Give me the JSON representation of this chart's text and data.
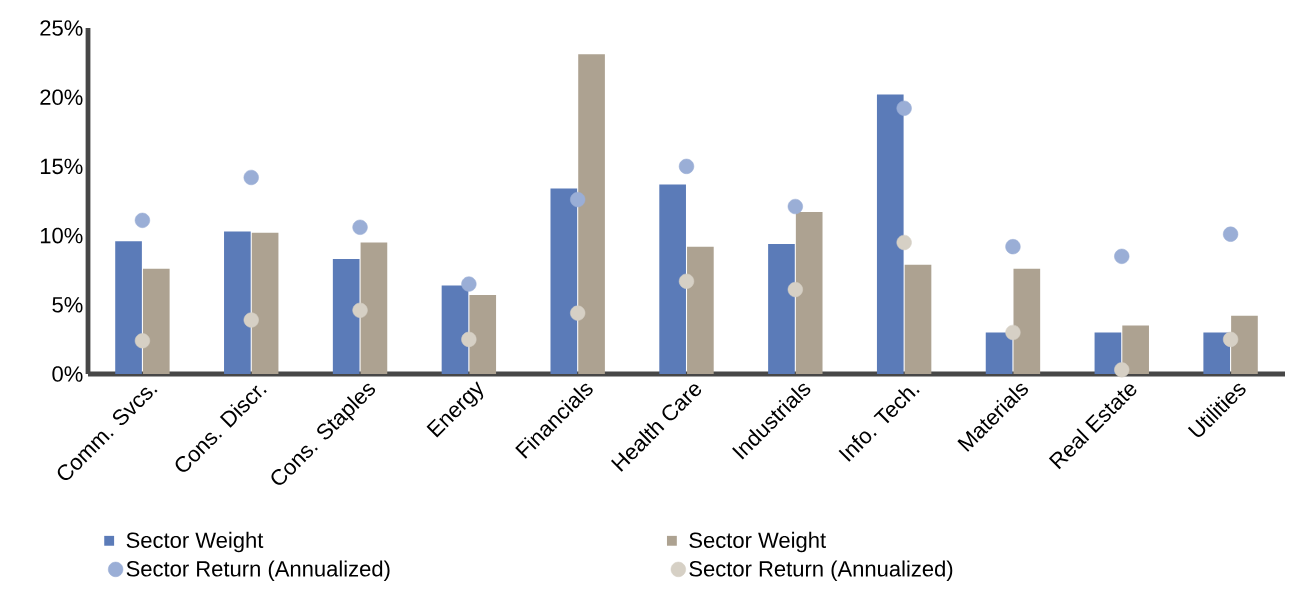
{
  "chart_data": {
    "type": "bar",
    "categories": [
      "Comm. Svcs.",
      "Cons. Discr.",
      "Cons. Staples",
      "Energy",
      "Financials",
      "Health Care",
      "Industrials",
      "Info. Tech.",
      "Materials",
      "Real Estate",
      "Utilities"
    ],
    "series": [
      {
        "name": "Sector Weight",
        "color": "#5b7bb8",
        "values": [
          9.6,
          10.3,
          8.3,
          6.4,
          13.4,
          13.7,
          9.4,
          20.2,
          3.0,
          3.0,
          3.0
        ]
      },
      {
        "name": "Sector Weight",
        "color": "#ada291",
        "values": [
          7.6,
          10.2,
          9.5,
          5.7,
          23.1,
          9.2,
          11.7,
          7.9,
          7.6,
          3.5,
          4.2
        ]
      },
      {
        "name": "Sector Return (Annualized)",
        "type": "scatter",
        "color": "#9aaed6",
        "x": [
          "Comm. Svcs.",
          "Cons. Discr.",
          "Cons. Staples",
          "Energy",
          "Financials",
          "Health Care",
          "Industrials",
          "Info. Tech.",
          "Materials",
          "Real Estate",
          "Utilities"
        ],
        "values": [
          11.1,
          14.2,
          10.6,
          6.5,
          12.6,
          15.0,
          12.1,
          19.2,
          9.2,
          8.5,
          10.1
        ]
      },
      {
        "name": "Sector Return (Annualized)",
        "type": "scatter",
        "color": "#d6d0c5",
        "x": [
          "Comm. Svcs.",
          "Cons. Discr.",
          "Cons. Staples",
          "Energy",
          "Financials",
          "Health Care",
          "Industrials",
          "Info. Tech.",
          "Materials",
          "Real Estate",
          "Utilities"
        ],
        "values": [
          2.4,
          3.9,
          4.6,
          2.5,
          4.4,
          6.7,
          6.1,
          9.5,
          3.0,
          0.3,
          2.5
        ]
      }
    ],
    "ylim": [
      0,
      25
    ],
    "yticks": [
      {
        "value": 0,
        "label": "0%"
      },
      {
        "value": 5,
        "label": "5%"
      },
      {
        "value": 10,
        "label": "10%"
      },
      {
        "value": 15,
        "label": "15%"
      },
      {
        "value": 20,
        "label": "20%"
      },
      {
        "value": 25,
        "label": "25%"
      }
    ],
    "legend": "bottom",
    "marker": "circle"
  }
}
